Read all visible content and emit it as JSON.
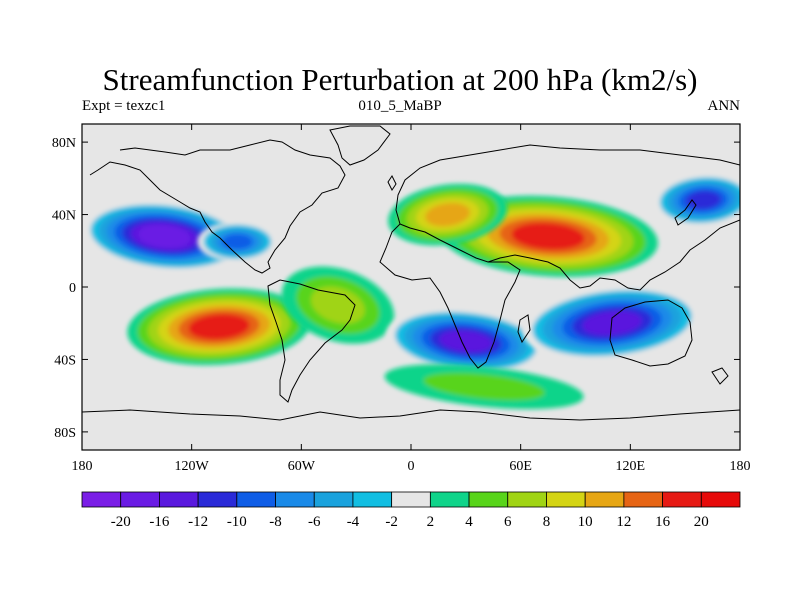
{
  "header": {
    "title": "Streamfunction Perturbation at 200 hPa (km2/s)",
    "left_label": "Expt = texzc1",
    "center_label": "010_5_MaBP",
    "right_label": "ANN"
  },
  "chart_data": {
    "type": "heatmap",
    "title": "Streamfunction Perturbation at 200 hPa (km2/s)",
    "xlabel": "",
    "ylabel": "",
    "xlim": [
      -180,
      180
    ],
    "ylim": [
      -90,
      90
    ],
    "x_ticks": [
      {
        "value": -180,
        "label": "180"
      },
      {
        "value": -120,
        "label": "120W"
      },
      {
        "value": -60,
        "label": "60W"
      },
      {
        "value": 0,
        "label": "0"
      },
      {
        "value": 60,
        "label": "60E"
      },
      {
        "value": 120,
        "label": "120E"
      },
      {
        "value": 180,
        "label": "180"
      }
    ],
    "y_ticks": [
      {
        "value": 80,
        "label": "80N"
      },
      {
        "value": 40,
        "label": "40N"
      },
      {
        "value": 0,
        "label": "0"
      },
      {
        "value": -40,
        "label": "40S"
      },
      {
        "value": -80,
        "label": "80S"
      }
    ],
    "colorbar": {
      "levels": [
        -20,
        -16,
        -12,
        -10,
        -8,
        -6,
        -4,
        -2,
        2,
        4,
        6,
        8,
        10,
        12,
        16,
        20
      ],
      "labels": [
        "-20",
        "-16",
        "-12",
        "-10",
        "-8",
        "-6",
        "-4",
        "-2",
        "2",
        "4",
        "6",
        "8",
        "10",
        "12",
        "16",
        "20"
      ],
      "colors": [
        "#7a1ee6",
        "#6a1be4",
        "#5a19de",
        "#2a2ad8",
        "#0f5de6",
        "#1a8ae8",
        "#1aa2dd",
        "#12bee2",
        "#e6e6e6",
        "#10d48a",
        "#58d41a",
        "#a0d414",
        "#d4d414",
        "#e6a614",
        "#e66414",
        "#e61a14",
        "#e60a0a"
      ]
    },
    "features": [
      {
        "name": "north-pacific-low",
        "lon": -135,
        "lat": 28,
        "value": -20
      },
      {
        "name": "north-atlantic-low",
        "lon": -95,
        "lat": 25,
        "value": -10
      },
      {
        "name": "eurasia-high",
        "lon": 75,
        "lat": 28,
        "value": 16
      },
      {
        "name": "north-africa-high",
        "lon": 20,
        "lat": 40,
        "value": 10
      },
      {
        "name": "nw-pacific-low",
        "lon": 160,
        "lat": 48,
        "value": -12
      },
      {
        "name": "south-pacific-high",
        "lon": -105,
        "lat": -22,
        "value": 16
      },
      {
        "name": "south-america-high",
        "lon": -40,
        "lat": -10,
        "value": 6
      },
      {
        "name": "south-indian-low",
        "lon": 30,
        "lat": -30,
        "value": -16
      },
      {
        "name": "australia-low",
        "lon": 110,
        "lat": -20,
        "value": -16
      },
      {
        "name": "southern-ocean-high",
        "lon": 40,
        "lat": -55,
        "value": 4
      }
    ]
  }
}
